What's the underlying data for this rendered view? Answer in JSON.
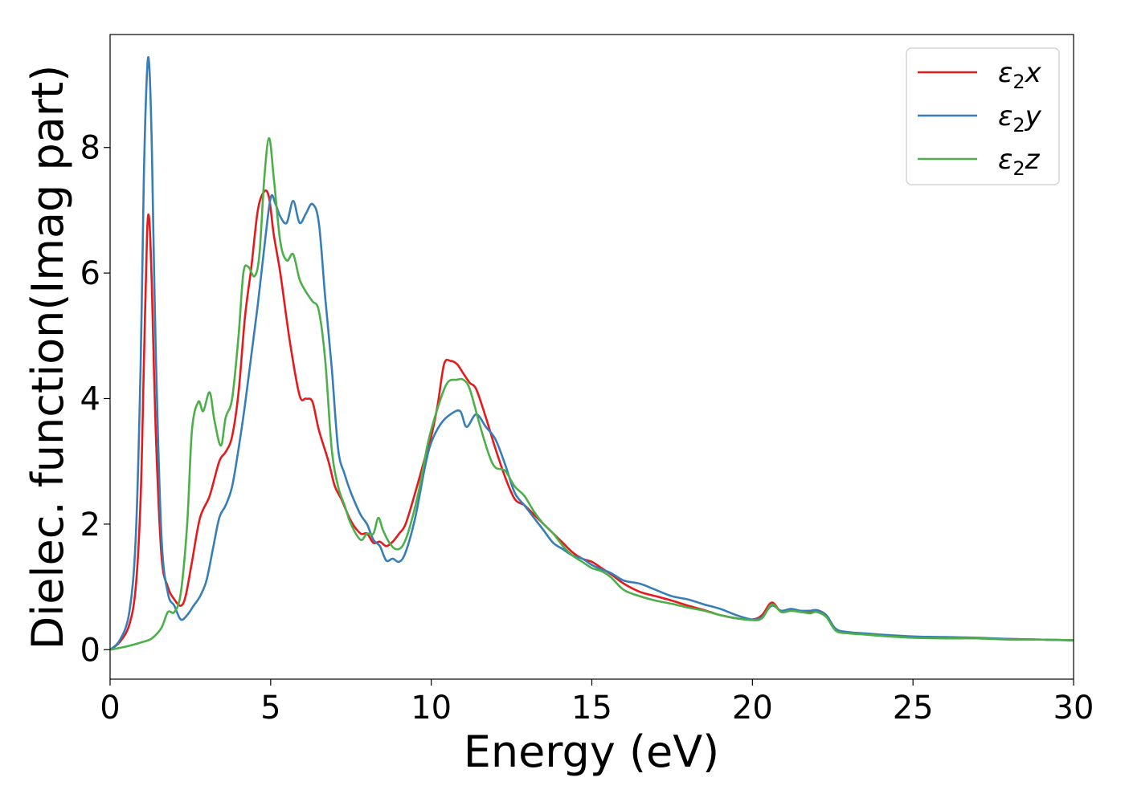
{
  "chart_data": {
    "type": "line",
    "title": "",
    "xlabel": "Energy (eV)",
    "ylabel": "Dielec. function(Imag part)",
    "xlim": [
      0,
      30
    ],
    "ylim": [
      -0.47,
      9.8
    ],
    "x_ticks": [
      0,
      5,
      10,
      15,
      20,
      25,
      30
    ],
    "y_ticks": [
      0,
      2,
      4,
      6,
      8
    ],
    "grid": false,
    "legend_position": "top-right",
    "series": [
      {
        "name": "ε₂x",
        "legend_main": "ε",
        "legend_sub": "2",
        "legend_suffix": "x",
        "color": "#e41a1c",
        "x": [
          0,
          0.3,
          0.6,
          0.8,
          0.95,
          1.05,
          1.15,
          1.22,
          1.3,
          1.42,
          1.6,
          1.8,
          2.0,
          2.2,
          2.35,
          2.55,
          2.8,
          3.1,
          3.4,
          3.6,
          3.8,
          4.0,
          4.2,
          4.4,
          4.6,
          4.8,
          4.95,
          5.1,
          5.3,
          5.6,
          5.9,
          6.1,
          6.3,
          6.5,
          6.8,
          7.0,
          7.2,
          7.5,
          7.8,
          8.0,
          8.2,
          8.4,
          8.6,
          8.8,
          9.0,
          9.2,
          9.5,
          9.8,
          10.0,
          10.2,
          10.4,
          10.6,
          10.8,
          11.0,
          11.2,
          11.4,
          11.7,
          12.0,
          12.3,
          12.6,
          12.9,
          13.2,
          13.5,
          13.8,
          14.1,
          14.4,
          14.7,
          15.0,
          15.3,
          15.6,
          16.0,
          16.5,
          17.0,
          17.5,
          18.0,
          18.5,
          19.0,
          19.5,
          20.0,
          20.3,
          20.6,
          20.9,
          21.2,
          21.5,
          21.8,
          22.0,
          22.3,
          22.6,
          23.0,
          23.5,
          24.0,
          25.0,
          26.0,
          27.0,
          28.0,
          29.0,
          30.0
        ],
        "values": [
          0.0,
          0.12,
          0.4,
          1.0,
          2.4,
          4.5,
          6.6,
          6.85,
          5.8,
          3.5,
          1.5,
          1.0,
          0.8,
          0.7,
          0.85,
          1.4,
          2.1,
          2.45,
          3.0,
          3.15,
          3.4,
          4.1,
          5.3,
          6.1,
          7.0,
          7.3,
          7.2,
          6.6,
          6.0,
          4.9,
          4.05,
          4.0,
          3.95,
          3.5,
          3.0,
          2.6,
          2.4,
          2.05,
          1.85,
          1.85,
          1.7,
          1.72,
          1.65,
          1.72,
          1.85,
          2.0,
          2.5,
          3.05,
          3.4,
          3.9,
          4.55,
          4.6,
          4.55,
          4.4,
          4.25,
          4.15,
          3.7,
          3.2,
          2.75,
          2.4,
          2.3,
          2.15,
          2.0,
          1.85,
          1.7,
          1.55,
          1.45,
          1.4,
          1.3,
          1.2,
          1.05,
          0.92,
          0.85,
          0.78,
          0.7,
          0.63,
          0.55,
          0.5,
          0.48,
          0.55,
          0.75,
          0.6,
          0.63,
          0.6,
          0.6,
          0.63,
          0.55,
          0.32,
          0.27,
          0.25,
          0.23,
          0.2,
          0.19,
          0.18,
          0.17,
          0.16,
          0.15
        ]
      },
      {
        "name": "ε₂y",
        "legend_main": "ε",
        "legend_sub": "2",
        "legend_suffix": "y",
        "color": "#377eb8",
        "x": [
          0,
          0.3,
          0.6,
          0.8,
          0.95,
          1.05,
          1.15,
          1.22,
          1.3,
          1.42,
          1.6,
          1.8,
          2.0,
          2.2,
          2.4,
          2.6,
          2.8,
          3.0,
          3.2,
          3.4,
          3.6,
          3.8,
          4.0,
          4.2,
          4.4,
          4.6,
          4.8,
          5.0,
          5.15,
          5.3,
          5.5,
          5.7,
          5.9,
          6.1,
          6.3,
          6.5,
          6.7,
          6.9,
          7.1,
          7.3,
          7.5,
          7.8,
          8.0,
          8.2,
          8.4,
          8.6,
          8.8,
          9.0,
          9.2,
          9.5,
          9.8,
          10.0,
          10.3,
          10.6,
          10.9,
          11.1,
          11.4,
          11.7,
          12.0,
          12.3,
          12.6,
          12.9,
          13.2,
          13.5,
          13.8,
          14.1,
          14.4,
          14.7,
          15.0,
          15.3,
          15.6,
          16.0,
          16.5,
          17.0,
          17.5,
          18.0,
          18.5,
          19.0,
          19.5,
          20.0,
          20.3,
          20.6,
          20.9,
          21.2,
          21.5,
          21.8,
          22.0,
          22.3,
          22.6,
          23.0,
          23.5,
          24.0,
          25.0,
          26.0,
          27.0,
          28.0,
          29.0,
          30.0
        ],
        "values": [
          0.0,
          0.15,
          0.6,
          1.8,
          4.5,
          7.5,
          9.2,
          9.3,
          8.0,
          4.8,
          1.8,
          0.9,
          0.7,
          0.48,
          0.55,
          0.7,
          0.85,
          1.1,
          1.6,
          2.1,
          2.3,
          2.6,
          3.2,
          3.9,
          4.7,
          5.5,
          6.4,
          7.2,
          7.1,
          6.9,
          6.8,
          7.15,
          6.8,
          6.95,
          7.1,
          6.8,
          5.6,
          4.5,
          3.2,
          2.8,
          2.5,
          2.15,
          2.0,
          1.75,
          1.65,
          1.42,
          1.45,
          1.4,
          1.55,
          2.1,
          2.9,
          3.3,
          3.6,
          3.75,
          3.8,
          3.55,
          3.75,
          3.55,
          3.35,
          2.95,
          2.5,
          2.3,
          2.1,
          1.9,
          1.7,
          1.6,
          1.5,
          1.45,
          1.35,
          1.28,
          1.22,
          1.1,
          1.05,
          0.95,
          0.85,
          0.8,
          0.72,
          0.65,
          0.55,
          0.48,
          0.52,
          0.7,
          0.62,
          0.65,
          0.62,
          0.62,
          0.63,
          0.55,
          0.33,
          0.28,
          0.26,
          0.24,
          0.21,
          0.2,
          0.19,
          0.17,
          0.16,
          0.15
        ]
      },
      {
        "name": "ε₂z",
        "legend_main": "ε",
        "legend_sub": "2",
        "legend_suffix": "z",
        "color": "#4daf4a",
        "x": [
          0,
          0.5,
          1.0,
          1.3,
          1.6,
          1.8,
          2.0,
          2.2,
          2.4,
          2.55,
          2.75,
          2.9,
          3.1,
          3.25,
          3.45,
          3.6,
          3.8,
          4.0,
          4.15,
          4.3,
          4.5,
          4.65,
          4.8,
          4.95,
          5.1,
          5.3,
          5.5,
          5.7,
          5.9,
          6.1,
          6.3,
          6.5,
          6.7,
          6.9,
          7.1,
          7.3,
          7.5,
          7.8,
          8.0,
          8.2,
          8.35,
          8.5,
          8.7,
          8.9,
          9.1,
          9.3,
          9.6,
          9.9,
          10.2,
          10.5,
          10.8,
          11.0,
          11.2,
          11.5,
          11.8,
          12.0,
          12.3,
          12.6,
          12.9,
          13.2,
          13.5,
          13.8,
          14.1,
          14.4,
          14.7,
          15.0,
          15.3,
          15.6,
          16.0,
          16.5,
          17.0,
          17.5,
          18.0,
          18.5,
          19.0,
          19.5,
          20.0,
          20.3,
          20.6,
          20.9,
          21.2,
          21.5,
          21.8,
          22.0,
          22.3,
          22.6,
          23.0,
          23.5,
          24.0,
          25.0,
          26.0,
          27.0,
          28.0,
          29.0,
          30.0
        ],
        "values": [
          0.0,
          0.05,
          0.12,
          0.18,
          0.35,
          0.6,
          0.6,
          0.9,
          2.0,
          3.5,
          3.95,
          3.8,
          4.1,
          3.65,
          3.25,
          3.7,
          4.0,
          5.0,
          6.0,
          6.1,
          5.95,
          6.3,
          7.5,
          8.15,
          7.5,
          6.5,
          6.2,
          6.3,
          5.9,
          5.7,
          5.55,
          5.4,
          4.6,
          3.2,
          2.6,
          2.3,
          2.0,
          1.75,
          1.85,
          1.85,
          2.1,
          1.9,
          1.7,
          1.6,
          1.65,
          1.9,
          2.5,
          3.3,
          3.85,
          4.25,
          4.3,
          4.3,
          4.15,
          3.6,
          3.1,
          2.9,
          2.85,
          2.6,
          2.45,
          2.2,
          2.0,
          1.85,
          1.65,
          1.5,
          1.4,
          1.3,
          1.25,
          1.15,
          0.95,
          0.85,
          0.78,
          0.73,
          0.67,
          0.62,
          0.55,
          0.5,
          0.47,
          0.5,
          0.72,
          0.6,
          0.62,
          0.6,
          0.58,
          0.6,
          0.52,
          0.3,
          0.26,
          0.24,
          0.22,
          0.19,
          0.18,
          0.18,
          0.16,
          0.16,
          0.15
        ]
      }
    ]
  }
}
